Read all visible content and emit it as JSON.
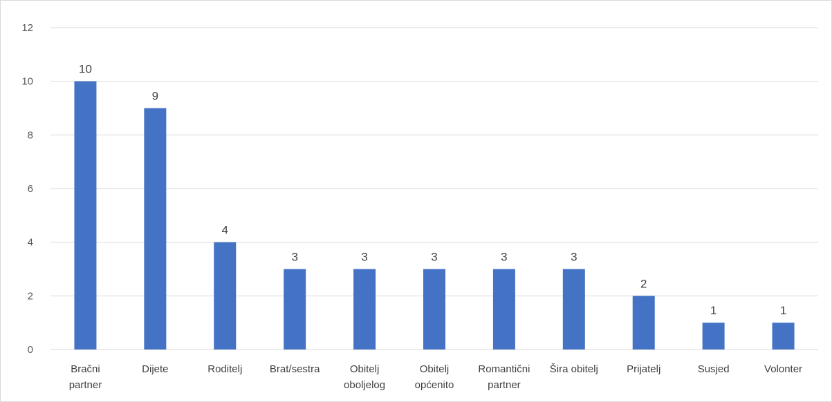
{
  "chart_data": {
    "type": "bar",
    "categories": [
      [
        "Bračni",
        "partner"
      ],
      [
        "Dijete"
      ],
      [
        "Roditelj"
      ],
      [
        "Brat/sestra"
      ],
      [
        "Obitelj",
        "oboljelog"
      ],
      [
        "Obitelj",
        "općenito"
      ],
      [
        "Romantični",
        "partner"
      ],
      [
        "Šira obitelj"
      ],
      [
        "Prijatelj"
      ],
      [
        "Susjed"
      ],
      [
        "Volonter"
      ]
    ],
    "values": [
      10,
      9,
      4,
      3,
      3,
      3,
      3,
      3,
      2,
      1,
      1
    ],
    "data_labels": [
      "10",
      "9",
      "4",
      "3",
      "3",
      "3",
      "3",
      "3",
      "2",
      "1",
      "1"
    ],
    "y_ticks": [
      "0",
      "2",
      "4",
      "6",
      "8",
      "10",
      "12"
    ],
    "ylim": [
      0,
      12
    ],
    "grid": true,
    "bar_color": "#4472c4",
    "grid_color": "#d9d9d9"
  }
}
